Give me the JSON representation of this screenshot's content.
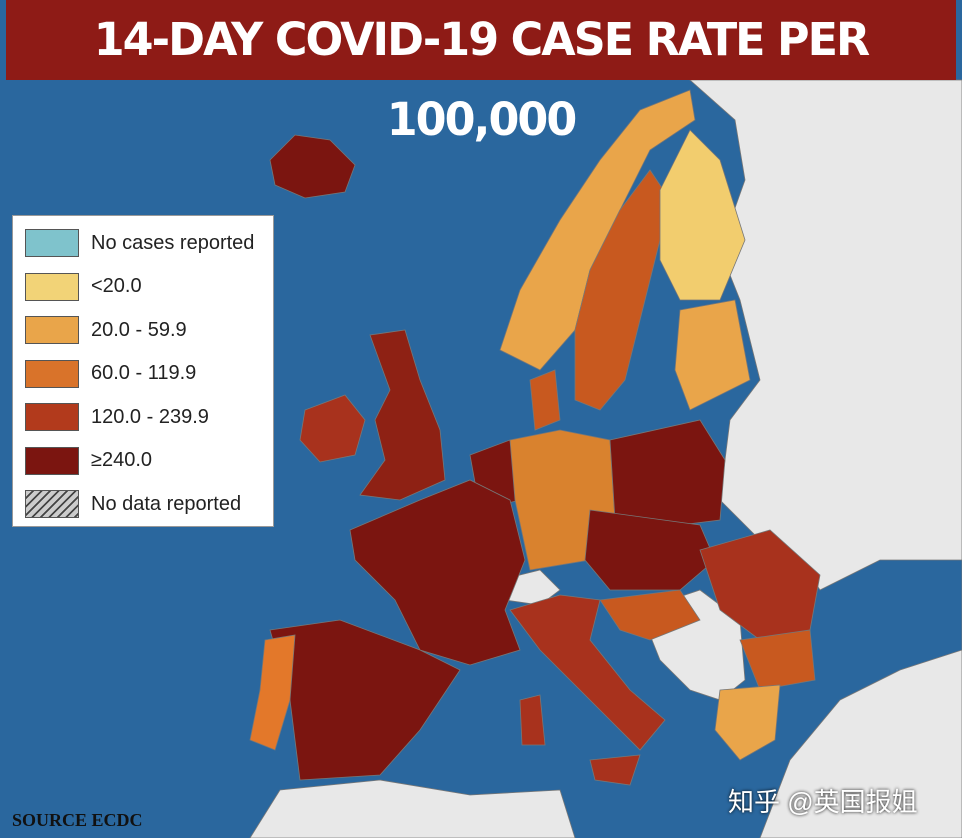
{
  "header": {
    "title": "14-DAY COVID-19 CASE RATE PER 100,000"
  },
  "legend": {
    "items": [
      {
        "label": "No cases reported",
        "color": "#7fc3cc"
      },
      {
        "label": "<20.0",
        "color": "#f2d377"
      },
      {
        "label": "20.0 - 59.9",
        "color": "#e9a54a"
      },
      {
        "label": "60.0 - 119.9",
        "color": "#d9732a"
      },
      {
        "label": "120.0 - 239.9",
        "color": "#b23a1c"
      },
      {
        "label": "≥240.0",
        "color": "#7b1510"
      },
      {
        "label": "No data reported",
        "hatched": true
      }
    ]
  },
  "footer": {
    "source": "SOURCE ECDC",
    "watermark": "知乎 @英国报姐"
  }
}
